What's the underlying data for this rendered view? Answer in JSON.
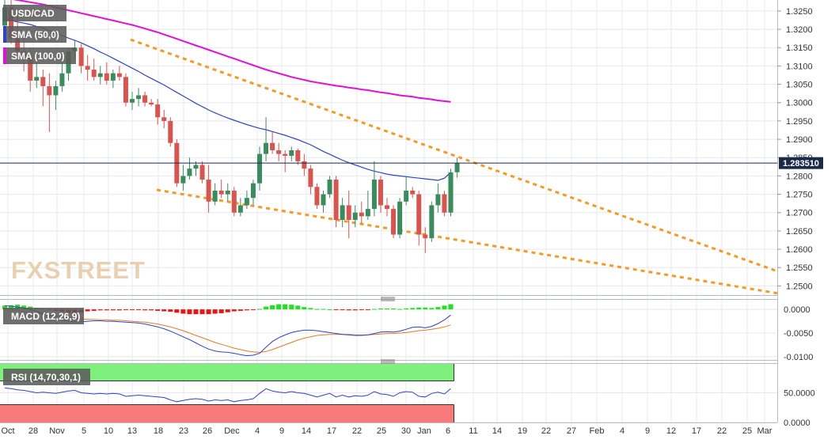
{
  "title": "USD/CAD",
  "watermark": "FXSTREET",
  "legend": {
    "sma50": "SMA (50,0)",
    "sma100": "SMA (100,0)",
    "macd": "MACD (12,26,9)",
    "rsi": "RSI (14,70,30,1)"
  },
  "current_price": "1.283510",
  "colors": {
    "bull": "#3a8c5f",
    "bear": "#d9534f",
    "sma50": "#2f43c8",
    "sma100": "#e010d8",
    "trendline": "#f59a23",
    "macd_line": "#2f43c8",
    "signal_line": "#e87a1e",
    "hist_pos": "#22e022",
    "hist_neg": "#ee1111",
    "rsi_line": "#2f43c8",
    "overbought_band": "#7ef07e",
    "oversold_band": "#f77b7b"
  },
  "chart_data": [
    {
      "type": "candlestick",
      "title": "USD/CAD",
      "y_ticks": [
        "1.2500",
        "1.2550",
        "1.2600",
        "1.2650",
        "1.2700",
        "1.2750",
        "1.2800",
        "1.2850",
        "1.2900",
        "1.2950",
        "1.3000",
        "1.3050",
        "1.3100",
        "1.3150",
        "1.3200",
        "1.3250"
      ],
      "ylim": [
        1.2475,
        1.328
      ],
      "x_ticks": [
        "Oct",
        "28",
        "Nov",
        "5",
        "10",
        "13",
        "18",
        "23",
        "26",
        "Dec",
        "4",
        "9",
        "14",
        "17",
        "22",
        "25",
        "30",
        "Jan",
        "6",
        "11",
        "14",
        "19",
        "22",
        "27",
        "Feb",
        "4",
        "9",
        "12",
        "17",
        "22",
        "25",
        "Mar"
      ],
      "ohlc": [
        [
          1.321,
          1.329,
          1.318,
          1.326
        ],
        [
          1.326,
          1.329,
          1.316,
          1.3175
        ],
        [
          1.3175,
          1.324,
          1.313,
          1.314
        ],
        [
          1.314,
          1.318,
          1.3085,
          1.3125
        ],
        [
          1.3125,
          1.315,
          1.303,
          1.306
        ],
        [
          1.306,
          1.311,
          1.304,
          1.307
        ],
        [
          1.307,
          1.309,
          1.299,
          1.3045
        ],
        [
          1.3045,
          1.308,
          1.292,
          1.302
        ],
        [
          1.302,
          1.306,
          1.298,
          1.3045
        ],
        [
          1.3045,
          1.311,
          1.303,
          1.308
        ],
        [
          1.308,
          1.315,
          1.306,
          1.314
        ],
        [
          1.314,
          1.317,
          1.312,
          1.315
        ],
        [
          1.315,
          1.316,
          1.308,
          1.31
        ],
        [
          1.31,
          1.313,
          1.306,
          1.309
        ],
        [
          1.309,
          1.312,
          1.306,
          1.307
        ],
        [
          1.307,
          1.31,
          1.305,
          1.308
        ],
        [
          1.308,
          1.311,
          1.305,
          1.306
        ],
        [
          1.306,
          1.309,
          1.304,
          1.308
        ],
        [
          1.308,
          1.31,
          1.306,
          1.307
        ],
        [
          1.307,
          1.308,
          1.299,
          1.3
        ],
        [
          1.3,
          1.303,
          1.298,
          1.301
        ],
        [
          1.301,
          1.304,
          1.299,
          1.302
        ],
        [
          1.302,
          1.303,
          1.299,
          1.3
        ],
        [
          1.3,
          1.301,
          1.299,
          1.2995
        ],
        [
          1.2995,
          1.301,
          1.294,
          1.296
        ],
        [
          1.296,
          1.298,
          1.293,
          1.295
        ],
        [
          1.295,
          1.296,
          1.288,
          1.289
        ],
        [
          1.289,
          1.29,
          1.277,
          1.278
        ],
        [
          1.278,
          1.283,
          1.276,
          1.28
        ],
        [
          1.28,
          1.285,
          1.279,
          1.282
        ],
        [
          1.282,
          1.284,
          1.28,
          1.283
        ],
        [
          1.283,
          1.284,
          1.278,
          1.279
        ],
        [
          1.279,
          1.283,
          1.27,
          1.273
        ],
        [
          1.273,
          1.278,
          1.272,
          1.276
        ],
        [
          1.276,
          1.279,
          1.274,
          1.275
        ],
        [
          1.275,
          1.278,
          1.273,
          1.276
        ],
        [
          1.276,
          1.277,
          1.269,
          1.27
        ],
        [
          1.27,
          1.274,
          1.269,
          1.272
        ],
        [
          1.272,
          1.276,
          1.271,
          1.274
        ],
        [
          1.274,
          1.279,
          1.272,
          1.278
        ],
        [
          1.278,
          1.288,
          1.276,
          1.286
        ],
        [
          1.286,
          1.296,
          1.284,
          1.289
        ],
        [
          1.289,
          1.292,
          1.286,
          1.287
        ],
        [
          1.287,
          1.289,
          1.284,
          1.286
        ],
        [
          1.286,
          1.287,
          1.281,
          1.2855
        ],
        [
          1.2855,
          1.288,
          1.284,
          1.287
        ],
        [
          1.287,
          1.2875,
          1.283,
          1.284
        ],
        [
          1.284,
          1.286,
          1.28,
          1.282
        ],
        [
          1.282,
          1.283,
          1.275,
          1.277
        ],
        [
          1.277,
          1.278,
          1.271,
          1.272
        ],
        [
          1.272,
          1.276,
          1.27,
          1.275
        ],
        [
          1.275,
          1.28,
          1.274,
          1.279
        ],
        [
          1.279,
          1.28,
          1.266,
          1.268
        ],
        [
          1.268,
          1.274,
          1.266,
          1.272
        ],
        [
          1.272,
          1.276,
          1.263,
          1.268
        ],
        [
          1.268,
          1.272,
          1.266,
          1.27
        ],
        [
          1.27,
          1.273,
          1.267,
          1.269
        ],
        [
          1.269,
          1.276,
          1.268,
          1.271
        ],
        [
          1.271,
          1.284,
          1.269,
          1.279
        ],
        [
          1.279,
          1.28,
          1.27,
          1.272
        ],
        [
          1.272,
          1.274,
          1.269,
          1.271
        ],
        [
          1.271,
          1.272,
          1.263,
          1.264
        ],
        [
          1.264,
          1.274,
          1.263,
          1.273
        ],
        [
          1.273,
          1.28,
          1.272,
          1.276
        ],
        [
          1.276,
          1.277,
          1.274,
          1.275
        ],
        [
          1.275,
          1.276,
          1.261,
          1.264
        ],
        [
          1.264,
          1.266,
          1.259,
          1.263
        ],
        [
          1.263,
          1.273,
          1.262,
          1.272
        ],
        [
          1.272,
          1.278,
          1.27,
          1.275
        ],
        [
          1.275,
          1.276,
          1.269,
          1.27
        ],
        [
          1.27,
          1.282,
          1.269,
          1.281
        ],
        [
          1.281,
          1.285,
          1.2795,
          1.2835
        ]
      ],
      "sma50": [
        1.3228,
        1.3224,
        1.322,
        1.3217,
        1.3213,
        1.3208,
        1.3203,
        1.3197,
        1.319,
        1.3183,
        1.3176,
        1.317,
        1.3163,
        1.3155,
        1.3147,
        1.3138,
        1.313,
        1.3121,
        1.3112,
        1.3103,
        1.3094,
        1.3085,
        1.3075,
        1.3066,
        1.3057,
        1.3048,
        1.3038,
        1.3028,
        1.3018,
        1.3008,
        1.2998,
        1.2989,
        1.298,
        1.2972,
        1.2965,
        1.2958,
        1.2952,
        1.2946,
        1.294,
        1.2935,
        1.293,
        1.2926,
        1.2921,
        1.2916,
        1.2911,
        1.2905,
        1.2899,
        1.2892,
        1.2885,
        1.2876,
        1.2867,
        1.2859,
        1.2851,
        1.2843,
        1.2836,
        1.283,
        1.2824,
        1.2818,
        1.2813,
        1.2809,
        1.2805,
        1.2802,
        1.28,
        1.2798,
        1.2796,
        1.2794,
        1.2792,
        1.279,
        1.2788,
        1.2794,
        1.281
      ],
      "sma100": [
        1.3285,
        1.3283,
        1.328,
        1.3277,
        1.3274,
        1.3271,
        1.3268,
        1.3264,
        1.326,
        1.3256,
        1.3252,
        1.3248,
        1.3244,
        1.324,
        1.3236,
        1.3232,
        1.3228,
        1.3224,
        1.322,
        1.3216,
        1.3212,
        1.3207,
        1.3202,
        1.3197,
        1.3192,
        1.3186,
        1.318,
        1.3174,
        1.3168,
        1.3162,
        1.3156,
        1.315,
        1.3144,
        1.3138,
        1.3132,
        1.3126,
        1.312,
        1.3114,
        1.3108,
        1.3102,
        1.3096,
        1.309,
        1.3085,
        1.308,
        1.3075,
        1.307,
        1.3066,
        1.3062,
        1.3058,
        1.3055,
        1.3052,
        1.3049,
        1.3046,
        1.3044,
        1.3041,
        1.3039,
        1.3036,
        1.3034,
        1.3031,
        1.3028,
        1.3026,
        1.3023,
        1.302,
        1.3018,
        1.3016,
        1.3013,
        1.3011,
        1.3009,
        1.3006,
        1.3004,
        1.3002
      ]
    },
    {
      "type": "bar",
      "title": "MACD (12,26,9)",
      "y_ticks": [
        "0.0000",
        "-0.0050",
        "-0.0100"
      ],
      "ylim": [
        -0.0107,
        0.0022
      ],
      "histogram": [
        0.0008,
        0.0009,
        0.001,
        0.0008,
        0.0006,
        0.0003,
        0.0001,
        -0.0001,
        -0.0003,
        -0.0005,
        -0.0007,
        -0.0007,
        -0.0006,
        -0.0004,
        -0.0003,
        -0.0002,
        -0.0002,
        -0.0002,
        -0.0002,
        -0.0001,
        -0.0001,
        -0.0001,
        -0.0002,
        -0.0002,
        -0.0003,
        -0.0004,
        -0.0005,
        -0.0007,
        -0.0009,
        -0.001,
        -0.001,
        -0.001,
        -0.001,
        -0.0009,
        -0.0008,
        -0.0006,
        -0.0004,
        -0.0003,
        -0.0002,
        -0.0001,
        0.0001,
        0.0006,
        0.0009,
        0.0011,
        0.0011,
        0.001,
        0.0008,
        0.0005,
        0.0003,
        0.0001,
        0.0001,
        0.0,
        -0.0001,
        -0.0001,
        -0.0002,
        -0.0002,
        -0.0001,
        -0.0001,
        0.0001,
        0.0002,
        0.0002,
        0.0002,
        0.0001,
        0.0002,
        0.0003,
        0.0004,
        0.0004,
        0.0003,
        0.0005,
        0.0008,
        0.0011
      ],
      "macd": [
        0.0008,
        0.0007,
        0.0005,
        0.0003,
        0.0,
        -0.0004,
        -0.0009,
        -0.0014,
        -0.0018,
        -0.0022,
        -0.0025,
        -0.0026,
        -0.0026,
        -0.0025,
        -0.0024,
        -0.0024,
        -0.0025,
        -0.0025,
        -0.0026,
        -0.0027,
        -0.0028,
        -0.0029,
        -0.0031,
        -0.0034,
        -0.0037,
        -0.0041,
        -0.0046,
        -0.0052,
        -0.0058,
        -0.0064,
        -0.0071,
        -0.0078,
        -0.0084,
        -0.0088,
        -0.009,
        -0.0091,
        -0.0093,
        -0.0096,
        -0.0098,
        -0.0097,
        -0.0093,
        -0.008,
        -0.0068,
        -0.006,
        -0.0054,
        -0.0049,
        -0.0046,
        -0.0044,
        -0.0044,
        -0.0045,
        -0.0047,
        -0.0049,
        -0.0051,
        -0.0053,
        -0.0054,
        -0.0055,
        -0.0055,
        -0.0054,
        -0.0051,
        -0.0048,
        -0.0047,
        -0.0048,
        -0.0046,
        -0.0042,
        -0.0038,
        -0.0037,
        -0.0039,
        -0.0036,
        -0.003,
        -0.0022,
        -0.0012
      ],
      "signal": [
        0.0,
        -0.0001,
        -0.0002,
        -0.0004,
        -0.0006,
        -0.0008,
        -0.001,
        -0.0012,
        -0.0014,
        -0.0016,
        -0.0018,
        -0.0019,
        -0.002,
        -0.0021,
        -0.0021,
        -0.0022,
        -0.0022,
        -0.0023,
        -0.0023,
        -0.0024,
        -0.0025,
        -0.0026,
        -0.0027,
        -0.0029,
        -0.0031,
        -0.0034,
        -0.0037,
        -0.0041,
        -0.0045,
        -0.005,
        -0.0055,
        -0.006,
        -0.0065,
        -0.007,
        -0.0074,
        -0.0078,
        -0.0082,
        -0.0085,
        -0.0088,
        -0.009,
        -0.0091,
        -0.0089,
        -0.0085,
        -0.008,
        -0.0075,
        -0.007,
        -0.0065,
        -0.0061,
        -0.0058,
        -0.0055,
        -0.0054,
        -0.0053,
        -0.0053,
        -0.0053,
        -0.0053,
        -0.0054,
        -0.0054,
        -0.0054,
        -0.0053,
        -0.0052,
        -0.0051,
        -0.0051,
        -0.005,
        -0.0049,
        -0.0047,
        -0.0045,
        -0.0044,
        -0.0042,
        -0.004,
        -0.0037,
        -0.0033
      ]
    },
    {
      "type": "line",
      "title": "RSI (14,70,30,1)",
      "y_ticks": [
        "50.0000",
        "0.0000"
      ],
      "ylim": [
        0,
        100
      ],
      "overbought": 70,
      "oversold": 30,
      "values": [
        58,
        57,
        55,
        54,
        52,
        50,
        51,
        50,
        49,
        51,
        53,
        54,
        50,
        49,
        48,
        49,
        48,
        49,
        48,
        44,
        45,
        46,
        45,
        44,
        43,
        42,
        38,
        35,
        37,
        39,
        40,
        39,
        36,
        38,
        37,
        38,
        35,
        37,
        38,
        40,
        49,
        57,
        53,
        51,
        50,
        52,
        50,
        49,
        46,
        43,
        46,
        49,
        43,
        46,
        43,
        45,
        44,
        46,
        52,
        48,
        47,
        44,
        50,
        52,
        51,
        44,
        43,
        49,
        51,
        48,
        57
      ]
    }
  ]
}
